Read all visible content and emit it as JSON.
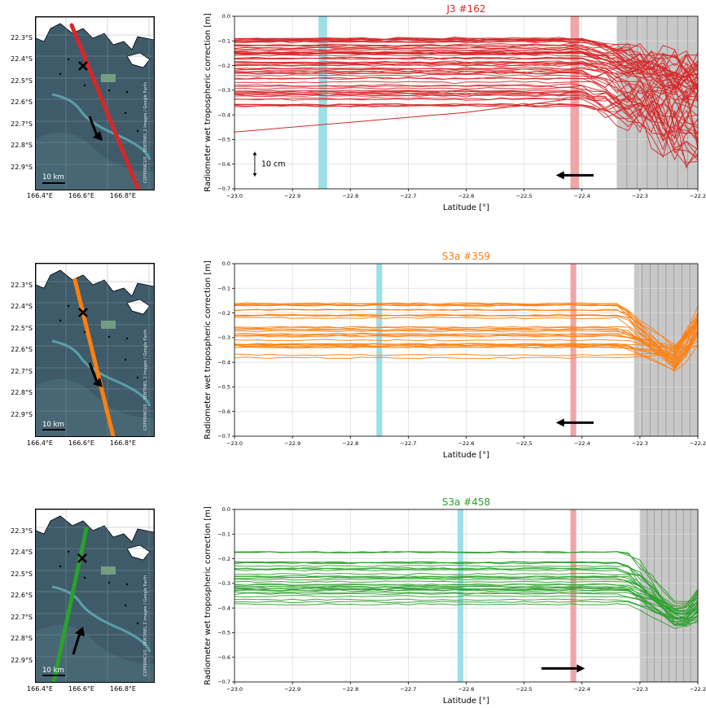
{
  "colors": {
    "j3": "#d62728",
    "s3a359": "#ff7f0e",
    "s3a458": "#2ca02c",
    "coast_band": "#9cdfe6",
    "harbour_band": "#f0a5a7",
    "land_shading": "#c8c8c8"
  },
  "maps": [
    {
      "lat_ticks": [
        "22.3°S",
        "22.4°S",
        "22.5°S",
        "22.6°S",
        "22.7°S",
        "22.8°S",
        "22.9°S"
      ],
      "lon_ticks": [
        "166.4°E",
        "166.6°E",
        "166.8°E"
      ],
      "scale_label": "10 km",
      "credit": "COPERNICUS - SENTINEL 2 Images / Google Earth",
      "track_color": "#d62728",
      "direction": "south"
    },
    {
      "lat_ticks": [
        "22.3°S",
        "22.4°S",
        "22.5°S",
        "22.6°S",
        "22.7°S",
        "22.8°S",
        "22.9°S"
      ],
      "lon_ticks": [
        "166.4°E",
        "166.6°E",
        "166.8°E"
      ],
      "scale_label": "10 km",
      "credit": "COPERNICUS - SENTINEL 2 Images / Google Earth",
      "track_color": "#ff7f0e",
      "direction": "south"
    },
    {
      "lat_ticks": [
        "22.3°S",
        "22.4°S",
        "22.5°S",
        "22.6°S",
        "22.7°S",
        "22.8°S",
        "22.9°S"
      ],
      "lon_ticks": [
        "166.4°E",
        "166.6°E",
        "166.8°E"
      ],
      "scale_label": "10 km",
      "credit": "COPERNICUS - SENTINEL 2 Images / Google Earth",
      "track_color": "#2ca02c",
      "direction": "north"
    }
  ],
  "chart_data": [
    {
      "type": "line",
      "title": "J3 #162",
      "xlabel": "Latitude [°]",
      "ylabel": "Radiometer wet tropospheric correction [m]",
      "xlim": [
        -23.0,
        -22.2
      ],
      "ylim": [
        -0.7,
        0.0
      ],
      "xticks": [
        "−23.0",
        "−22.9",
        "−22.8",
        "−22.7",
        "−22.6",
        "−22.5",
        "−22.4",
        "−22.3",
        "−22.2"
      ],
      "yticks": [
        "0.0",
        "−0.1",
        "−0.2",
        "−0.3",
        "−0.4",
        "−0.5",
        "−0.6",
        "−0.7"
      ],
      "grid": true,
      "coast_band": [
        -22.855,
        -22.84
      ],
      "harbour_band": [
        -22.42,
        -22.405
      ],
      "land_shading_from": -22.34,
      "scale_annotation": "10 cm",
      "track_direction": "decreasing latitude",
      "series_count": 60,
      "baseline_range": [
        -0.09,
        -0.37
      ],
      "land_behavior": "dispersed",
      "outlier": {
        "x": [
          -23.0,
          -22.8,
          -22.6,
          -22.4
        ],
        "y": [
          -0.47,
          -0.43,
          -0.39,
          -0.33
        ]
      }
    },
    {
      "type": "line",
      "title": "S3a #359",
      "xlabel": "Latitude [°]",
      "ylabel": "Radiometer wet tropospheric correction [m]",
      "xlim": [
        -23.0,
        -22.2
      ],
      "ylim": [
        -0.7,
        0.0
      ],
      "xticks": [
        "−23.0",
        "−22.9",
        "−22.8",
        "−22.7",
        "−22.6",
        "−22.5",
        "−22.4",
        "−22.3",
        "−22.2"
      ],
      "yticks": [
        "0.0",
        "−0.1",
        "−0.2",
        "−0.3",
        "−0.4",
        "−0.5",
        "−0.6",
        "−0.7"
      ],
      "grid": true,
      "coast_band": [
        -22.755,
        -22.745
      ],
      "harbour_band": [
        -22.42,
        -22.41
      ],
      "land_shading_from": -22.31,
      "track_direction": "decreasing latitude",
      "series_count": 30,
      "baseline_range": [
        -0.08,
        -0.39
      ],
      "land_behavior": "dip",
      "land_min_range": [
        -0.33,
        -0.44
      ]
    },
    {
      "type": "line",
      "title": "S3a #458",
      "xlabel": "Latitude [°]",
      "ylabel": "Radiometer wet tropospheric correction [m]",
      "xlim": [
        -23.0,
        -22.2
      ],
      "ylim": [
        -0.7,
        0.0
      ],
      "xticks": [
        "−23.0",
        "−22.9",
        "−22.8",
        "−22.7",
        "−22.6",
        "−22.5",
        "−22.4",
        "−22.3",
        "−22.2"
      ],
      "yticks": [
        "0.0",
        "−0.1",
        "−0.2",
        "−0.3",
        "−0.4",
        "−0.5",
        "−0.6",
        "−0.7"
      ],
      "grid": true,
      "coast_band": [
        -22.615,
        -22.605
      ],
      "harbour_band": [
        -22.42,
        -22.41
      ],
      "land_shading_from": -22.3,
      "track_direction": "increasing latitude",
      "series_count": 30,
      "baseline_range": [
        -0.09,
        -0.4
      ],
      "land_behavior": "dip",
      "land_min_range": [
        -0.4,
        -0.5
      ]
    }
  ]
}
